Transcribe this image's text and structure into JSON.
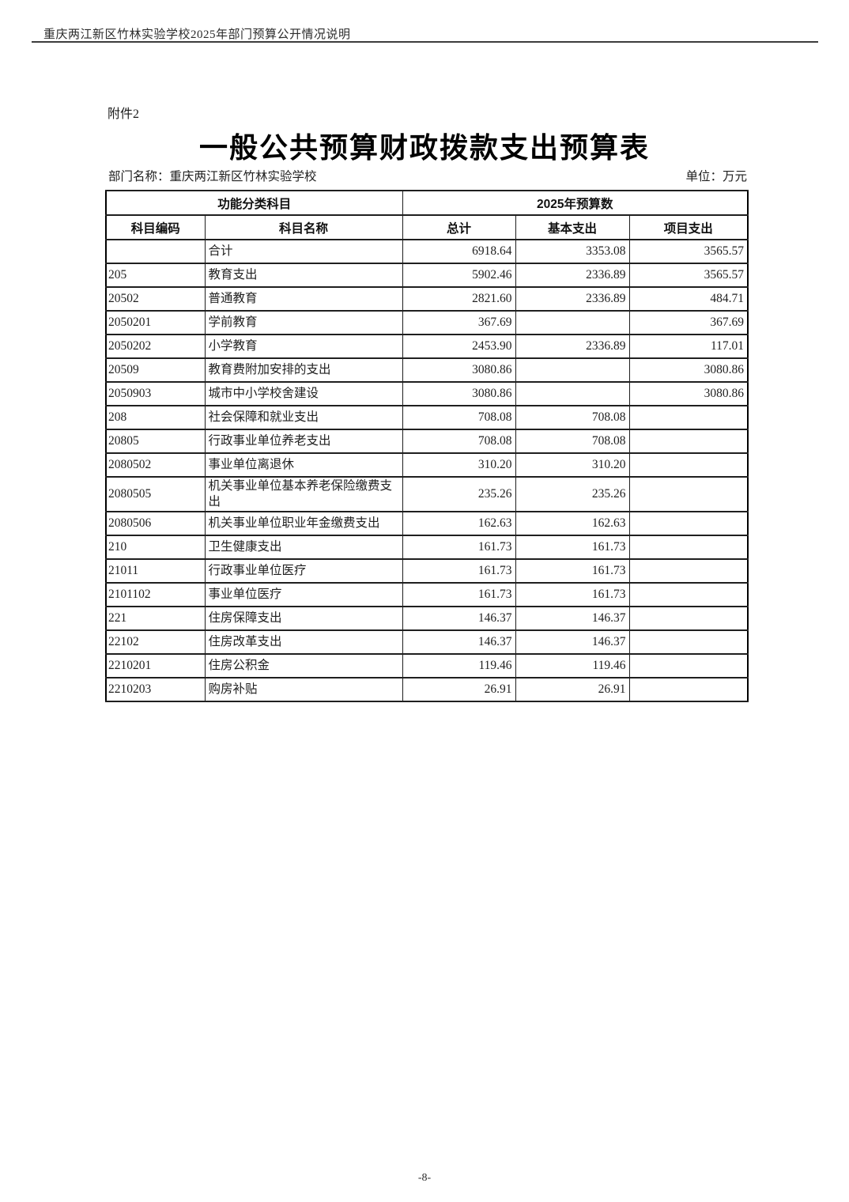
{
  "page": {
    "header_text": "重庆两江新区竹林实验学校2025年部门预算公开情况说明",
    "attachment_label": "附件2",
    "title": "一般公共预算财政拨款支出预算表",
    "department_label": "部门名称：重庆两江新区竹林实验学校",
    "unit_label": "单位：万元",
    "page_number": "-8-"
  },
  "table": {
    "header": {
      "group_functional": "功能分类科目",
      "group_budget": "2025年预算数",
      "columns": [
        "科目编码",
        "科目名称",
        "总计",
        "基本支出",
        "项目支出"
      ]
    },
    "rows": [
      {
        "code": "",
        "name": "合计",
        "total": "6918.64",
        "basic": "3353.08",
        "project": "3565.57"
      },
      {
        "code": "205",
        "name": "教育支出",
        "total": "5902.46",
        "basic": "2336.89",
        "project": "3565.57"
      },
      {
        "code": "20502",
        "name": "普通教育",
        "total": "2821.60",
        "basic": "2336.89",
        "project": "484.71"
      },
      {
        "code": "2050201",
        "name": "学前教育",
        "total": "367.69",
        "basic": "",
        "project": "367.69"
      },
      {
        "code": "2050202",
        "name": "小学教育",
        "total": "2453.90",
        "basic": "2336.89",
        "project": "117.01"
      },
      {
        "code": "20509",
        "name": "教育费附加安排的支出",
        "total": "3080.86",
        "basic": "",
        "project": "3080.86"
      },
      {
        "code": "2050903",
        "name": "城市中小学校舍建设",
        "total": "3080.86",
        "basic": "",
        "project": "3080.86"
      },
      {
        "code": "208",
        "name": "社会保障和就业支出",
        "total": "708.08",
        "basic": "708.08",
        "project": ""
      },
      {
        "code": "20805",
        "name": "行政事业单位养老支出",
        "total": "708.08",
        "basic": "708.08",
        "project": ""
      },
      {
        "code": "2080502",
        "name": "事业单位离退休",
        "total": "310.20",
        "basic": "310.20",
        "project": ""
      },
      {
        "code": "2080505",
        "name": "机关事业单位基本养老保险缴费支出",
        "total": "235.26",
        "basic": "235.26",
        "project": ""
      },
      {
        "code": "2080506",
        "name": "机关事业单位职业年金缴费支出",
        "total": "162.63",
        "basic": "162.63",
        "project": ""
      },
      {
        "code": "210",
        "name": "卫生健康支出",
        "total": "161.73",
        "basic": "161.73",
        "project": ""
      },
      {
        "code": "21011",
        "name": "行政事业单位医疗",
        "total": "161.73",
        "basic": "161.73",
        "project": ""
      },
      {
        "code": "2101102",
        "name": "事业单位医疗",
        "total": "161.73",
        "basic": "161.73",
        "project": ""
      },
      {
        "code": "221",
        "name": "住房保障支出",
        "total": "146.37",
        "basic": "146.37",
        "project": ""
      },
      {
        "code": "22102",
        "name": "住房改革支出",
        "total": "146.37",
        "basic": "146.37",
        "project": ""
      },
      {
        "code": "2210201",
        "name": "住房公积金",
        "total": "119.46",
        "basic": "119.46",
        "project": ""
      },
      {
        "code": "2210203",
        "name": "购房补贴",
        "total": "26.91",
        "basic": "26.91",
        "project": ""
      }
    ]
  }
}
